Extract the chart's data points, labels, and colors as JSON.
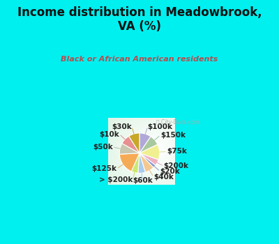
{
  "title": "Income distribution in Meadowbrook,\nVA (%)",
  "subtitle": "Black or African American residents",
  "title_color": "#111111",
  "subtitle_color": "#b05050",
  "bg_cyan": "#00f0f0",
  "bg_chart": "#e0f0e8",
  "labels": [
    "$100k",
    "$150k",
    "$75k",
    "$200k",
    "$20k",
    "$40k",
    "$60k",
    "> $200k",
    "$125k",
    "$50k",
    "$10k",
    "$30k"
  ],
  "values": [
    9.5,
    8.5,
    12.5,
    5.0,
    2.5,
    7.5,
    6.0,
    5.5,
    17.5,
    9.0,
    8.0,
    9.0
  ],
  "colors": [
    "#b0a8d8",
    "#aac8a0",
    "#f0f090",
    "#f0b0c0",
    "#8899cc",
    "#f5c890",
    "#aaccee",
    "#cce870",
    "#f5aa55",
    "#c8c8b0",
    "#e89090",
    "#c8a828"
  ],
  "line_colors": [
    "#aaaacc",
    "#99bbaa",
    "#dddd88",
    "#ddaacc",
    "#8899cc",
    "#ddbb88",
    "#aaccee",
    "#bbdd66",
    "#ddaa66",
    "#bbbbaa",
    "#dd8888",
    "#bbaa44"
  ],
  "wedge_linewidth": 0.8,
  "wedge_edgecolor": "#ffffff",
  "label_fontsize": 7.5
}
